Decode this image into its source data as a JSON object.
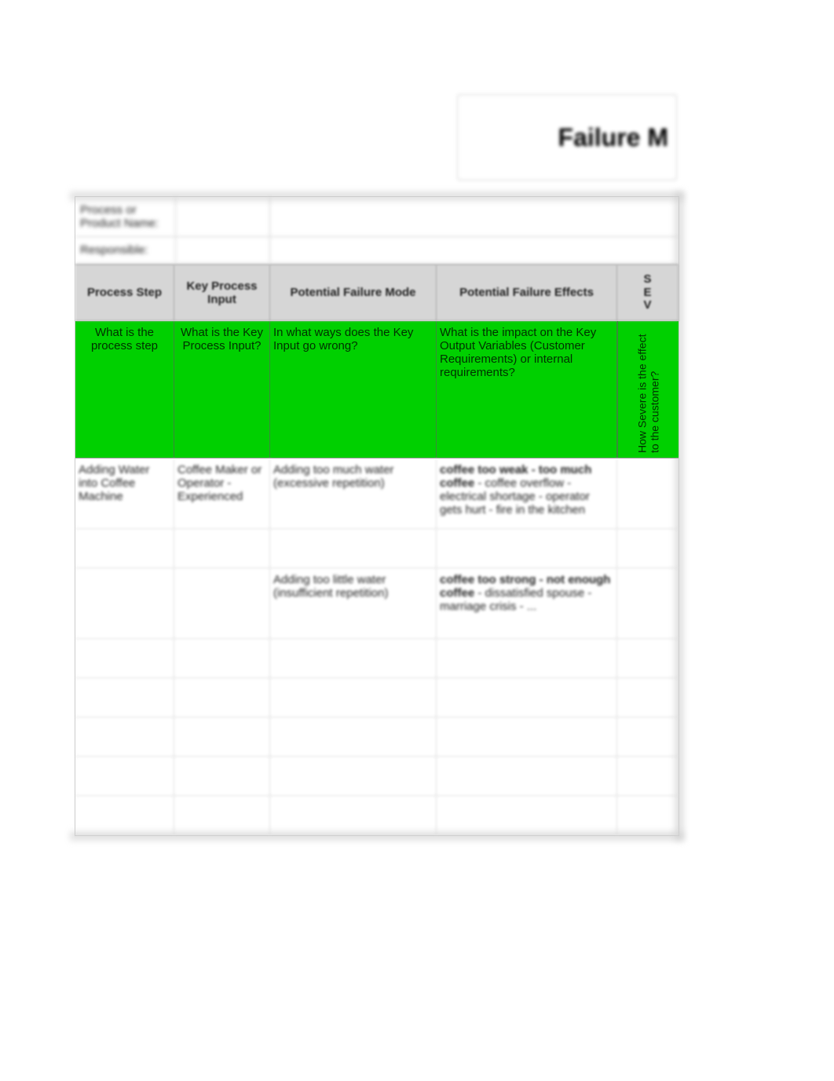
{
  "title": "Failure M",
  "meta": {
    "process_label": "Process or Product Name:",
    "responsible_label": "Responsible:"
  },
  "headers": {
    "col1": "Process Step",
    "col2": "Key Process Input",
    "col3": "Potential Failure Mode",
    "col4": "Potential Failure Effects",
    "col5": "S\nE\nV"
  },
  "guide": {
    "col1": "What is the process step",
    "col2": "What is the Key Process Input?",
    "col3": "In what ways does the Key Input go wrong?",
    "col4": "What is the impact on the Key Output Variables (Customer Requirements) or internal requirements?",
    "col5": "How Severe is the effect to the customer?"
  },
  "rows": [
    {
      "col1": "Adding Water into Coffee Machine",
      "col2": "Coffee Maker or Operator - Experienced",
      "col3": "Adding too much water (excessive repetition)",
      "col4_bold": "coffee too weak - too much coffee",
      "col4_rest": " - coffee overflow - electrical shortage - operator gets hurt - fire in the kitchen",
      "col5": ""
    },
    {
      "col1": "",
      "col2": "",
      "col3": "",
      "col4_bold": "",
      "col4_rest": "",
      "col5": ""
    },
    {
      "col1": "",
      "col2": "",
      "col3": "Adding too little water (insufficient repetition)",
      "col4_bold": "coffee too strong - not enough coffee",
      "col4_rest": " - dissatisfied spouse - marriage crisis - ...",
      "col5": ""
    },
    {
      "col1": "",
      "col2": "",
      "col3": "",
      "col4_bold": "",
      "col4_rest": "",
      "col5": ""
    },
    {
      "col1": "",
      "col2": "",
      "col3": "",
      "col4_bold": "",
      "col4_rest": "",
      "col5": ""
    },
    {
      "col1": "",
      "col2": "",
      "col3": "",
      "col4_bold": "",
      "col4_rest": "",
      "col5": ""
    },
    {
      "col1": "",
      "col2": "",
      "col3": "",
      "col4_bold": "",
      "col4_rest": "",
      "col5": ""
    },
    {
      "col1": "",
      "col2": "",
      "col3": "",
      "col4_bold": "",
      "col4_rest": "",
      "col5": ""
    }
  ],
  "colors": {
    "header_bg": "#d6d6d6",
    "green_bg": "#00d000",
    "green_text": "#003000",
    "border": "#cccccc"
  }
}
